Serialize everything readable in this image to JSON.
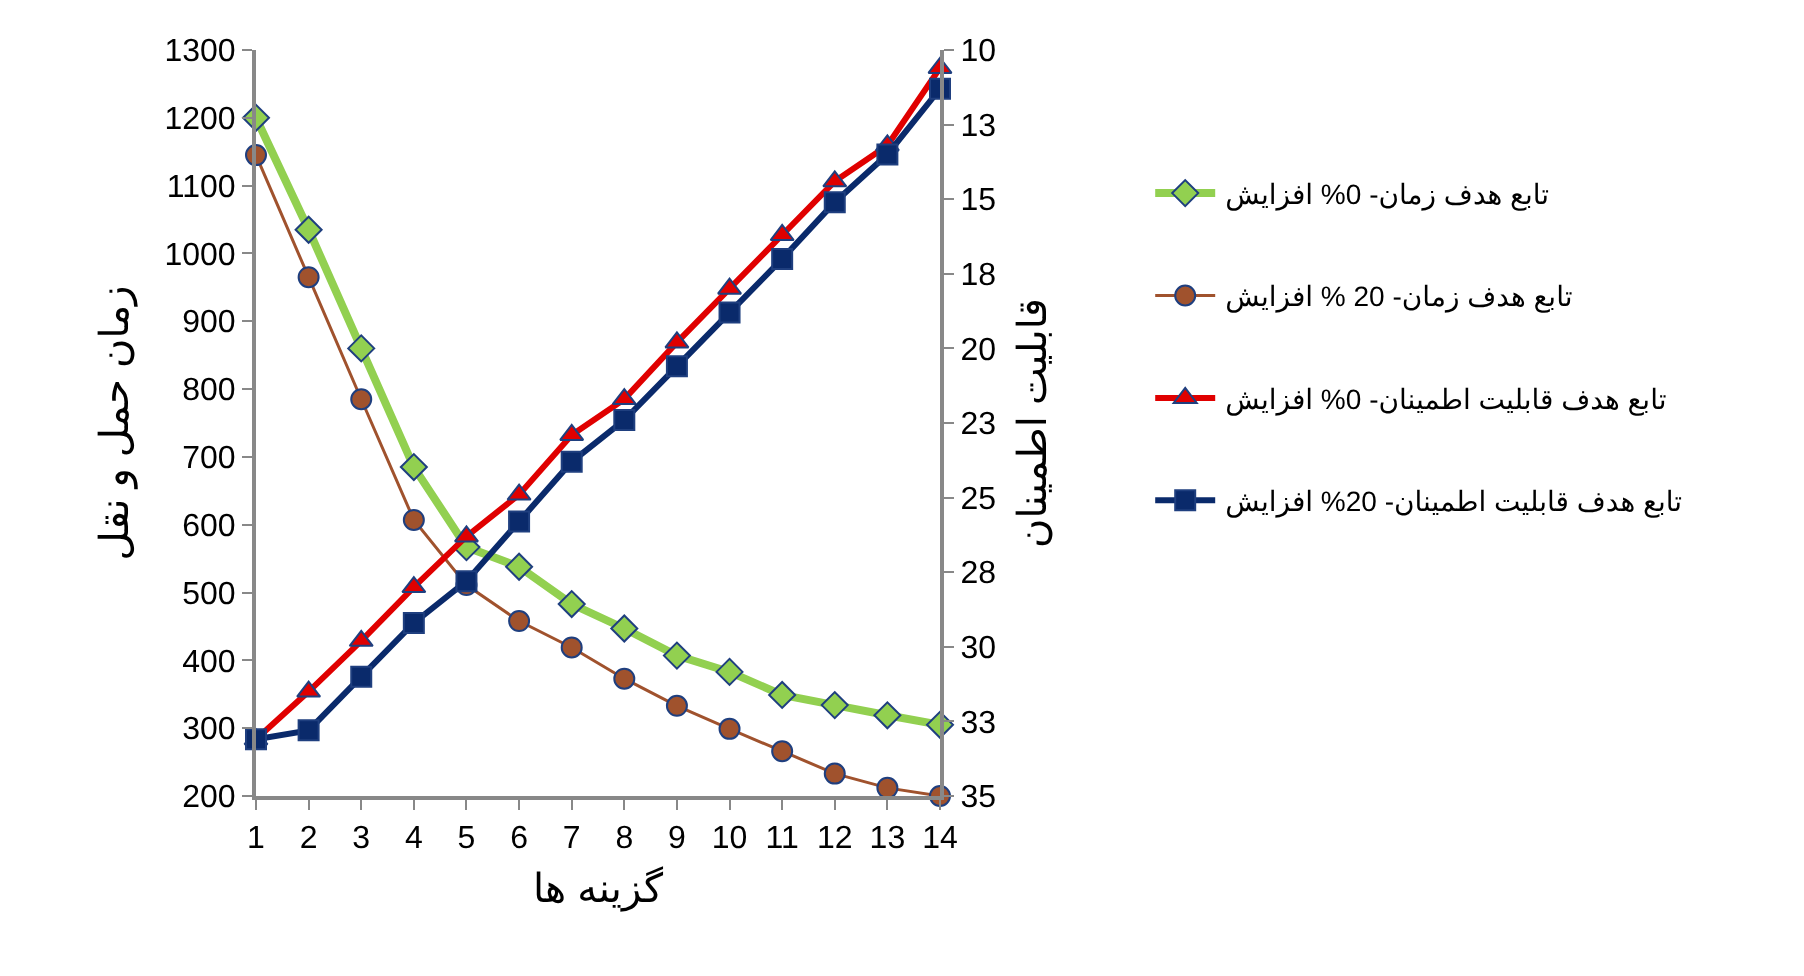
{
  "chart_data": {
    "type": "line",
    "xlabel": "گزینه ها",
    "ylabel": "زمان حمل و نقل",
    "y2label": "قابلیت اطمینان",
    "x": [
      1,
      2,
      3,
      4,
      5,
      6,
      7,
      8,
      9,
      10,
      11,
      12,
      13,
      14
    ],
    "xlim": [
      1,
      14
    ],
    "xticks": [
      1,
      2,
      3,
      4,
      5,
      6,
      7,
      8,
      9,
      10,
      11,
      12,
      13,
      14
    ],
    "ylim": [
      200,
      1300
    ],
    "yticks": [
      200,
      300,
      400,
      500,
      600,
      700,
      800,
      900,
      1000,
      1100,
      1200,
      1300
    ],
    "y2lim": [
      35,
      10
    ],
    "y2ticks": [
      {
        "value": 10,
        "label": "10"
      },
      {
        "value": 12.5,
        "label": "13"
      },
      {
        "value": 15,
        "label": "15"
      },
      {
        "value": 17.5,
        "label": "18"
      },
      {
        "value": 20,
        "label": "20"
      },
      {
        "value": 22.5,
        "label": "23"
      },
      {
        "value": 25,
        "label": "25"
      },
      {
        "value": 27.5,
        "label": "28"
      },
      {
        "value": 30,
        "label": "30"
      },
      {
        "value": 32.5,
        "label": "33"
      },
      {
        "value": 35,
        "label": "35"
      }
    ],
    "grid": false,
    "legend": "right",
    "series": [
      {
        "name": "تابع هدف زمان- 0% افزایش",
        "color": "#92d050",
        "marker": "diamond",
        "values": [
          1200,
          1035,
          860,
          685,
          567,
          538,
          483,
          447,
          407,
          383,
          349,
          334,
          319,
          305
        ]
      },
      {
        "name": "تابع هدف زمان- 20 % افزایش",
        "color": "#a0522d",
        "marker": "circle",
        "values": [
          1145,
          965,
          785,
          607,
          511,
          458,
          419,
          373,
          333,
          299,
          266,
          233,
          212,
          200
        ]
      },
      {
        "name": "تابع هدف قابلیت اطمینان- 0% افزایش",
        "color": "#e00000",
        "marker": "triangle",
        "axis": "y2",
        "values": [
          33.1,
          31.5,
          29.8,
          28.0,
          26.3,
          24.9,
          22.9,
          21.7,
          19.8,
          18.0,
          16.2,
          14.4,
          13.2,
          10.6
        ]
      },
      {
        "name": "تابع هدف قابلیت اطمینان- 20% افزایش",
        "color": "#0a2a6b",
        "marker": "square",
        "axis": "y2",
        "values": [
          33.1,
          32.8,
          31.0,
          29.2,
          27.8,
          25.8,
          23.8,
          22.4,
          20.6,
          18.8,
          17.0,
          15.1,
          13.5,
          11.3
        ]
      }
    ]
  }
}
